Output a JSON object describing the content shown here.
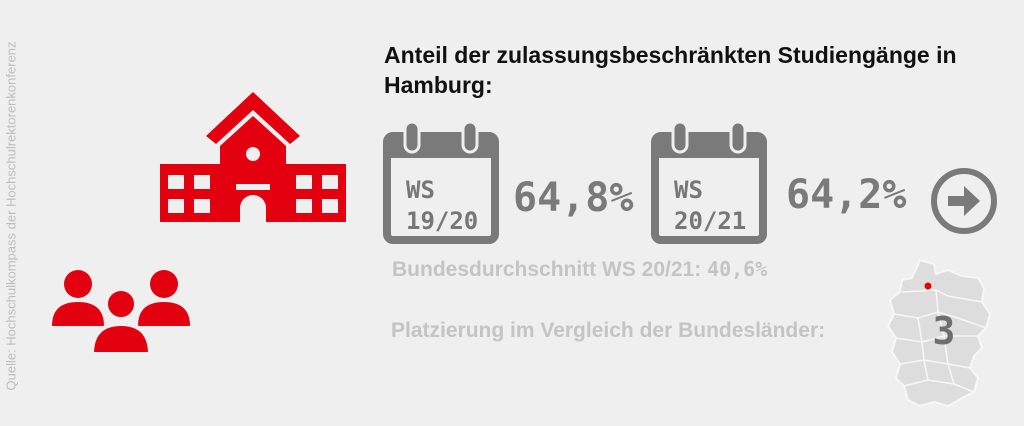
{
  "source": "Quelle: Hochschulkompass der Hochschulrektorenkonferenz",
  "headline": "Anteil der zulassungsbeschränkten Studiengänge in Hamburg:",
  "terms": [
    {
      "ws": "WS",
      "years": "19/20",
      "value": "64,8%"
    },
    {
      "ws": "WS",
      "years": "20/21",
      "value": "64,2%"
    }
  ],
  "average": {
    "label": "Bundesdurchschnitt WS 20/21:",
    "value": "40,6%"
  },
  "ranking": {
    "label": "Platzierung im Vergleich der Bundesländer:",
    "value": "3"
  },
  "colors": {
    "accent": "#e3000f",
    "gray": "#7a7a7a",
    "light_gray": "#c4c4c4",
    "background": "#efefef"
  },
  "icons": [
    "school-building-icon",
    "people-group-icon",
    "calendar-icon",
    "arrow-right-icon",
    "germany-map-icon"
  ]
}
